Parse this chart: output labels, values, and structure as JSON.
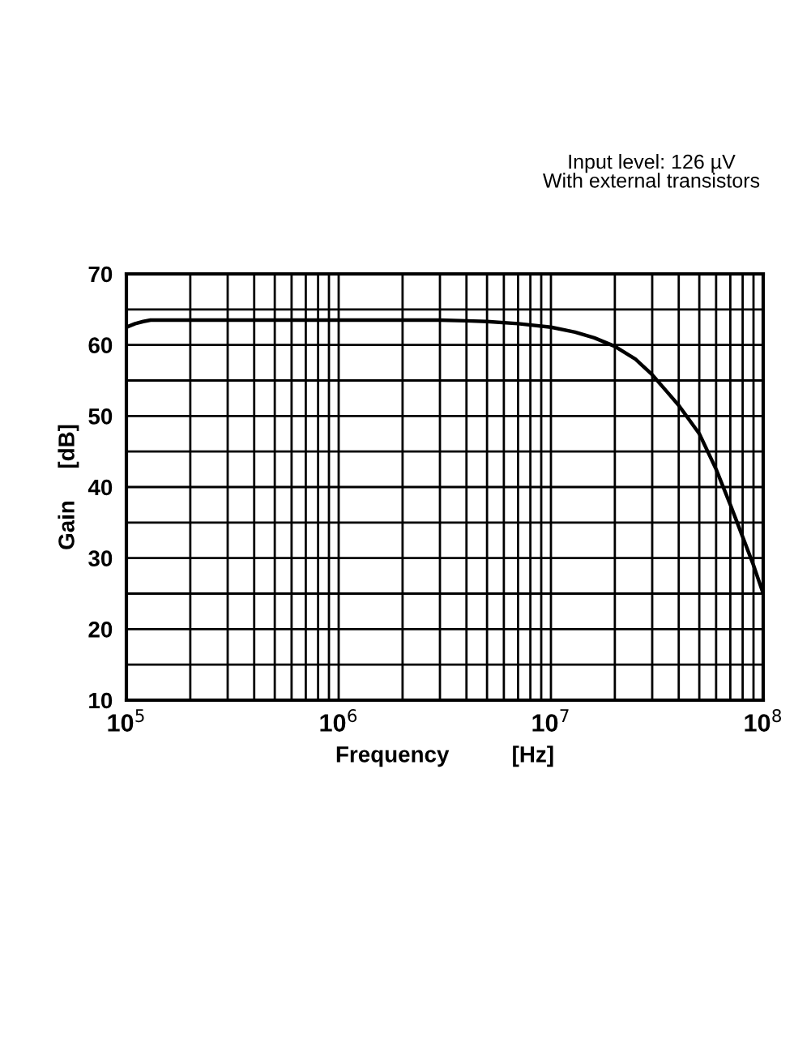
{
  "chart_data": {
    "type": "line",
    "xlabel": "Frequency          [Hz]",
    "ylabel": "Gain     [dB]",
    "annotations": [
      "Input level: 126 µV\nWith external transistors"
    ],
    "log": "x",
    "grid": true,
    "color": "#000000",
    "x": [
      100000,
      110000,
      120000,
      130000,
      200000,
      500000,
      1000000,
      2000000,
      3000000,
      4000000,
      5000000,
      7000000,
      10000000,
      13000000,
      16000000,
      20000000,
      25000000,
      30000000,
      35000000,
      40000000,
      50000000,
      60000000,
      70000000,
      80000000,
      90000000,
      100000000
    ],
    "values": [
      62.5,
      63.0,
      63.3,
      63.5,
      63.5,
      63.5,
      63.5,
      63.5,
      63.5,
      63.4,
      63.3,
      63.0,
      62.5,
      61.8,
      61.0,
      59.8,
      58.0,
      55.8,
      53.5,
      51.5,
      47.5,
      42.5,
      37.5,
      33.0,
      29.0,
      25.0
    ],
    "xlim": [
      100000,
      100000000
    ],
    "ylim": [
      10,
      70
    ],
    "xticks": [
      {
        "value": 100000,
        "label": "10$^{5}$"
      },
      {
        "value": 200000,
        "label": null
      },
      {
        "value": 300000,
        "label": null
      },
      {
        "value": 400000,
        "label": null
      },
      {
        "value": 500000,
        "label": null
      },
      {
        "value": 600000,
        "label": null
      },
      {
        "value": 700000,
        "label": null
      },
      {
        "value": 800000,
        "label": null
      },
      {
        "value": 900000,
        "label": null
      },
      {
        "value": 1000000,
        "label": "10$^{6}$"
      },
      {
        "value": 2000000,
        "label": null
      },
      {
        "value": 3000000,
        "label": null
      },
      {
        "value": 4000000,
        "label": null
      },
      {
        "value": 5000000,
        "label": null
      },
      {
        "value": 6000000,
        "label": null
      },
      {
        "value": 7000000,
        "label": null
      },
      {
        "value": 8000000,
        "label": null
      },
      {
        "value": 9000000,
        "label": null
      },
      {
        "value": 10000000,
        "label": "10$^{7}$"
      },
      {
        "value": 20000000,
        "label": null
      },
      {
        "value": 30000000,
        "label": null
      },
      {
        "value": 40000000,
        "label": null
      },
      {
        "value": 50000000,
        "label": null
      },
      {
        "value": 60000000,
        "label": null
      },
      {
        "value": 70000000,
        "label": null
      },
      {
        "value": 80000000,
        "label": null
      },
      {
        "value": 90000000,
        "label": null
      },
      {
        "value": 100000000,
        "label": "10$^{8}$"
      }
    ],
    "yticks": [
      10,
      {
        "value": 15,
        "label": null
      },
      20,
      {
        "value": 25,
        "label": null
      },
      30,
      {
        "value": 35,
        "label": null
      },
      40,
      {
        "value": 45,
        "label": null
      },
      50,
      {
        "value": 55,
        "label": null
      },
      60,
      {
        "value": 65,
        "label": null
      },
      70
    ]
  }
}
